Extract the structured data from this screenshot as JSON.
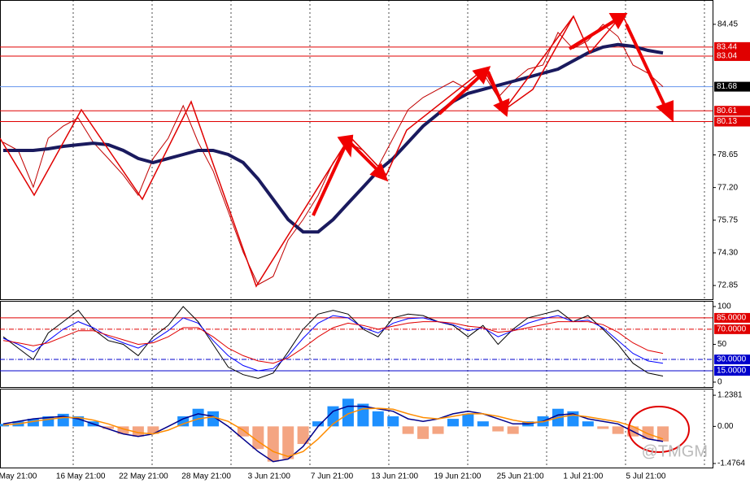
{
  "chart_data": [
    {
      "type": "line",
      "ylim": [
        72.24,
        85.53
      ],
      "yticks": [
        84.45,
        78.65,
        {
          "value": 77.2,
          "label": "77.20"
        },
        75.75,
        {
          "value": 74.3,
          "label": "74.30"
        },
        72.85
      ],
      "series": [
        {
          "color": "#c00000",
          "width": 1,
          "values": [
            79.21,
            78.85,
            77.22,
            79.39,
            79.93,
            80.29,
            79.21,
            78.49,
            77.76,
            76.86,
            78.49,
            79.39,
            80.84,
            79.21,
            77.94,
            76.14,
            74.33,
            72.89,
            73.25,
            74.87,
            75.78,
            76.86,
            78.31,
            79.21,
            78.85,
            78.13,
            79.39,
            80.66,
            81.2,
            81.56,
            81.92,
            81.56,
            82.28,
            81.2,
            81.92,
            82.46,
            82.64,
            84.09,
            83.37,
            83.73,
            84.45,
            83.91,
            82.64,
            82.28,
            81.68
          ]
        },
        {
          "color": "#1a1a5e",
          "width": 4,
          "values": [
            78.85,
            78.85,
            78.85,
            78.92,
            79.03,
            79.1,
            79.17,
            79.1,
            78.85,
            78.49,
            78.31,
            78.49,
            78.67,
            78.85,
            78.85,
            78.67,
            78.31,
            77.58,
            76.68,
            75.78,
            75.23,
            75.23,
            75.78,
            76.5,
            77.22,
            77.94,
            78.49,
            79.21,
            79.93,
            80.47,
            81.02,
            81.38,
            81.56,
            81.74,
            81.92,
            82.1,
            82.28,
            82.46,
            82.82,
            83.18,
            83.44,
            83.55,
            83.47,
            83.29,
            83.18
          ]
        }
      ],
      "levels": [
        {
          "value": 83.44,
          "color": "#e00000"
        },
        {
          "value": 83.04,
          "color": "#e00000"
        },
        {
          "value": 81.68,
          "color": "#000000"
        },
        {
          "value": 80.61,
          "color": "#e00000"
        },
        {
          "value": 80.13,
          "color": "#e00000"
        }
      ]
    },
    {
      "type": "line",
      "ylim": [
        -6.5,
        107.5
      ],
      "yticks": [
        100,
        50,
        0
      ],
      "series": [
        {
          "color": "#000000",
          "width": 1,
          "values": [
            60,
            45,
            30,
            65,
            80,
            95,
            70,
            55,
            50,
            35,
            60,
            75,
            100,
            80,
            50,
            20,
            10,
            5,
            12,
            40,
            70,
            90,
            95,
            90,
            70,
            60,
            85,
            90,
            88,
            80,
            75,
            60,
            75,
            50,
            70,
            85,
            90,
            95,
            80,
            88,
            70,
            50,
            25,
            12,
            8
          ]
        },
        {
          "color": "#0000ff",
          "width": 1,
          "values": [
            58,
            50,
            40,
            55,
            70,
            80,
            72,
            60,
            52,
            45,
            55,
            68,
            85,
            78,
            55,
            35,
            22,
            15,
            18,
            35,
            58,
            78,
            88,
            85,
            72,
            65,
            78,
            84,
            85,
            80,
            76,
            68,
            72,
            60,
            68,
            78,
            84,
            88,
            80,
            82,
            72,
            55,
            38,
            28,
            25
          ]
        },
        {
          "color": "#e00000",
          "width": 1,
          "values": [
            55,
            52,
            48,
            52,
            60,
            68,
            68,
            62,
            56,
            50,
            52,
            60,
            72,
            72,
            60,
            45,
            35,
            28,
            25,
            32,
            45,
            60,
            72,
            78,
            75,
            70,
            74,
            78,
            80,
            80,
            78,
            74,
            72,
            66,
            68,
            72,
            76,
            80,
            80,
            80,
            76,
            66,
            52,
            42,
            38
          ]
        }
      ],
      "levels": [
        {
          "value": 85,
          "label": "85.0000",
          "color": "#e00000"
        },
        {
          "value": 70,
          "label": "70.0000",
          "color": "#e00000"
        },
        {
          "value": 30,
          "label": "30.0000",
          "color": "#0000cc"
        },
        {
          "value": 15,
          "label": "15.0000",
          "color": "#0000cc"
        }
      ]
    },
    {
      "type": "macd",
      "ylim": [
        -1.637,
        1.499
      ],
      "yticks": [
        1.2381,
        {
          "value": 0,
          "label": "0.00"
        },
        -1.4764
      ],
      "histogram": {
        "up_color": "#1e90ff",
        "down_color": "#f4a582",
        "values": [
          0.1,
          0.2,
          0.3,
          0.4,
          0.5,
          0.4,
          0.2,
          -0.1,
          -0.3,
          -0.4,
          -0.3,
          0,
          0.4,
          0.7,
          0.6,
          0,
          -0.4,
          -0.9,
          -1.4,
          -1.3,
          -0.7,
          0.2,
          0.8,
          1.1,
          0.9,
          0.6,
          0.4,
          -0.3,
          -0.5,
          -0.3,
          0.3,
          0.5,
          0.2,
          -0.2,
          -0.3,
          0.2,
          0.4,
          0.7,
          0.6,
          0.2,
          -0.1,
          -0.3,
          -0.4,
          -0.5,
          -0.6
        ]
      },
      "series": [
        {
          "color": "#00008b",
          "width": 1.5,
          "values": [
            0.1,
            0.2,
            0.3,
            0.35,
            0.4,
            0.3,
            0.1,
            -0.1,
            -0.3,
            -0.4,
            -0.3,
            0,
            0.3,
            0.5,
            0.4,
            0,
            -0.5,
            -1,
            -1.4,
            -1.3,
            -0.8,
            0,
            0.6,
            0.8,
            0.8,
            0.7,
            0.6,
            0.3,
            0.2,
            0.3,
            0.5,
            0.6,
            0.5,
            0.3,
            0.1,
            0.1,
            0.2,
            0.45,
            0.5,
            0.3,
            0.2,
            0.1,
            -0.2,
            -0.5,
            -0.6
          ]
        },
        {
          "color": "#ff8c00",
          "width": 1.5,
          "values": [
            0.05,
            0.1,
            0.2,
            0.28,
            0.35,
            0.35,
            0.25,
            0.1,
            -0.1,
            -0.25,
            -0.3,
            -0.15,
            0.1,
            0.3,
            0.38,
            0.2,
            -0.15,
            -0.6,
            -1,
            -1.2,
            -1,
            -0.5,
            0.1,
            0.5,
            0.7,
            0.72,
            0.68,
            0.5,
            0.35,
            0.3,
            0.4,
            0.5,
            0.5,
            0.4,
            0.25,
            0.15,
            0.18,
            0.35,
            0.45,
            0.38,
            0.28,
            0.18,
            0,
            -0.3,
            -0.5
          ]
        }
      ],
      "x_labels": [
        "May 21:00",
        "16 May 21:00",
        "22 May 21:00",
        "28 May 21:00",
        "3 Jun 21:00",
        "7 Jun 21:00",
        "13 Jun 21:00",
        "19 Jun 21:00",
        "25 Jun 21:00",
        "1 Jul 21:00",
        "5 Jul 21:00"
      ],
      "watermark": "@TMGM"
    }
  ]
}
